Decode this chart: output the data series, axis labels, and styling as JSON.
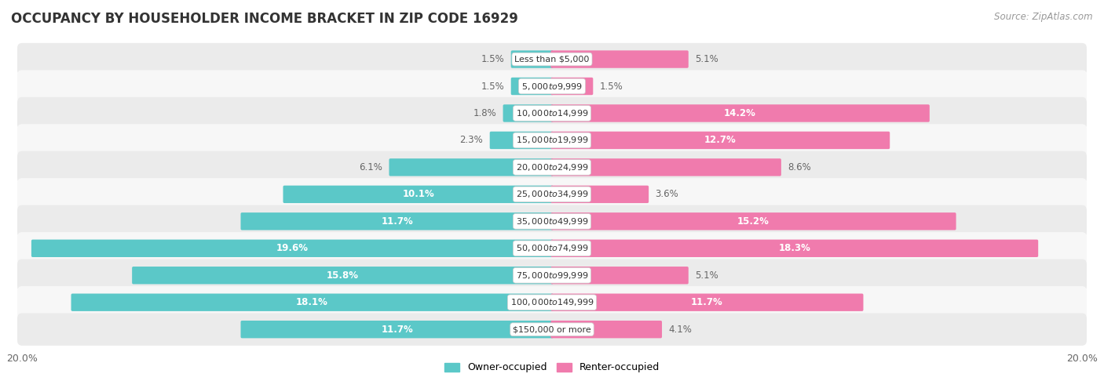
{
  "title": "OCCUPANCY BY HOUSEHOLDER INCOME BRACKET IN ZIP CODE 16929",
  "source": "Source: ZipAtlas.com",
  "categories": [
    "Less than $5,000",
    "$5,000 to $9,999",
    "$10,000 to $14,999",
    "$15,000 to $19,999",
    "$20,000 to $24,999",
    "$25,000 to $34,999",
    "$35,000 to $49,999",
    "$50,000 to $74,999",
    "$75,000 to $99,999",
    "$100,000 to $149,999",
    "$150,000 or more"
  ],
  "owner_values": [
    1.5,
    1.5,
    1.8,
    2.3,
    6.1,
    10.1,
    11.7,
    19.6,
    15.8,
    18.1,
    11.7
  ],
  "renter_values": [
    5.1,
    1.5,
    14.2,
    12.7,
    8.6,
    3.6,
    15.2,
    18.3,
    5.1,
    11.7,
    4.1
  ],
  "owner_color": "#5BC8C8",
  "renter_color": "#F07BAD",
  "bar_height": 0.55,
  "xlim": 20.0,
  "title_fontsize": 12,
  "source_fontsize": 8.5,
  "label_fontsize": 8.5,
  "category_fontsize": 8,
  "legend_fontsize": 9,
  "background_color": "#FFFFFF",
  "row_bg_even": "#EBEBEB",
  "row_bg_odd": "#F7F7F7"
}
